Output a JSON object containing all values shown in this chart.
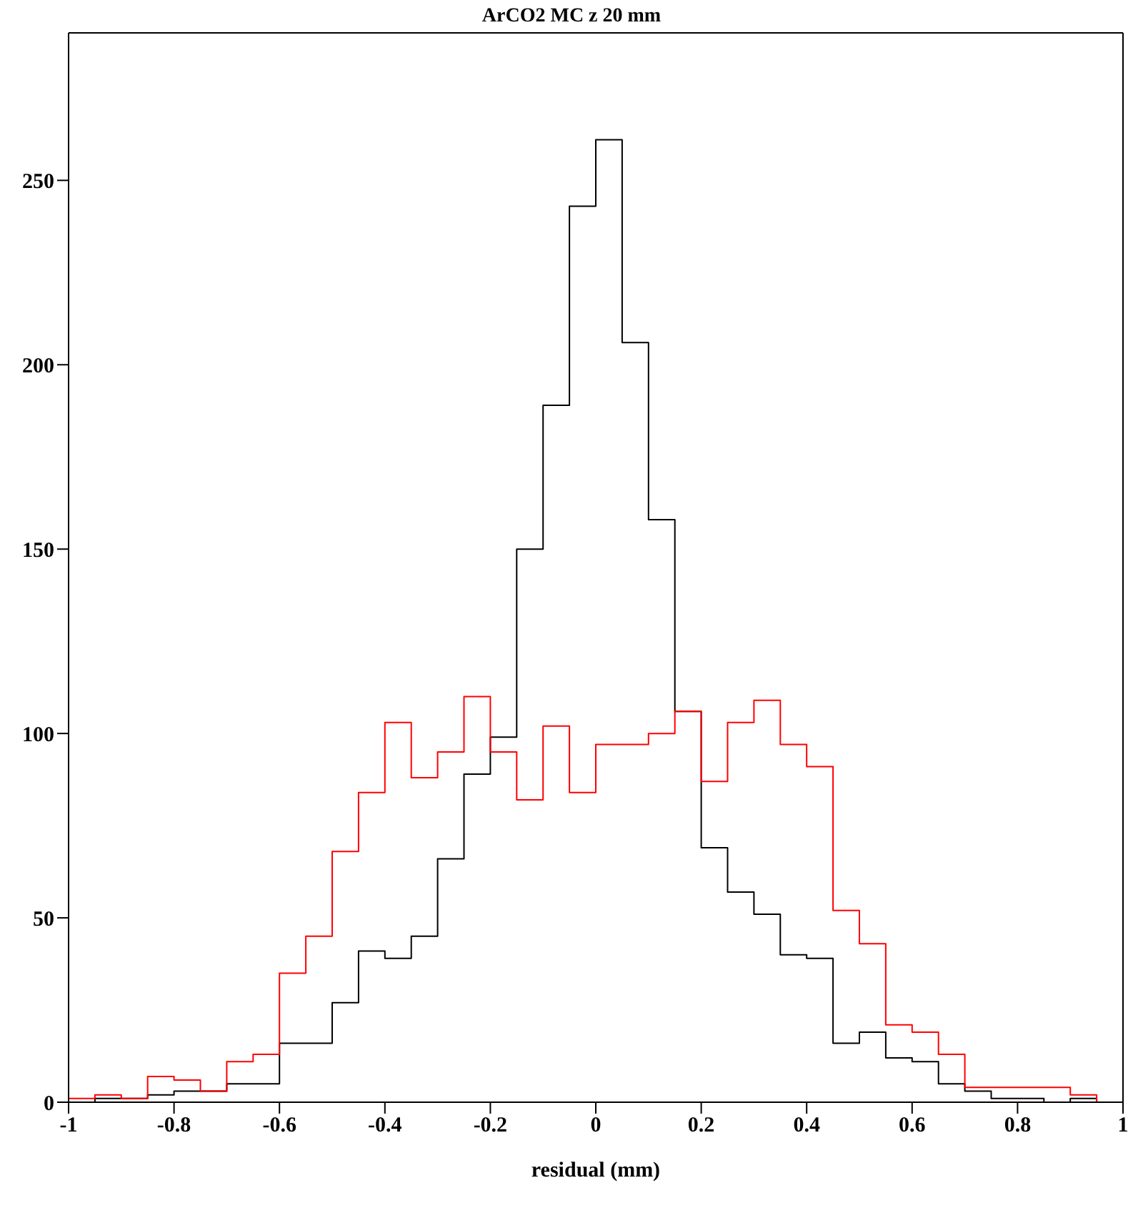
{
  "chart_data": {
    "type": "histogram",
    "title": "ArCO2 MC z  20 mm",
    "xlabel": "residual (mm)",
    "bins": [
      -1,
      -0.95,
      -0.9,
      -0.85,
      -0.8,
      -0.75,
      -0.7,
      -0.65,
      -0.6,
      -0.55,
      -0.5,
      -0.45,
      -0.4,
      -0.35,
      -0.3,
      -0.25,
      -0.2,
      -0.15,
      -0.1,
      -0.05,
      0,
      0.05,
      0.1,
      0.15,
      0.2,
      0.25,
      0.3,
      0.35,
      0.4,
      0.45,
      0.5,
      0.55,
      0.6,
      0.65,
      0.7,
      0.75,
      0.8,
      0.85,
      0.9,
      0.95,
      1
    ],
    "series": [
      {
        "color": "#000000",
        "values": [
          0,
          1,
          1,
          2,
          3,
          3,
          5,
          5,
          16,
          16,
          27,
          41,
          39,
          45,
          66,
          89,
          99,
          150,
          189,
          243,
          261,
          206,
          158,
          106,
          69,
          57,
          51,
          40,
          39,
          16,
          19,
          12,
          11,
          5,
          3,
          1,
          1,
          0,
          1,
          0
        ]
      },
      {
        "color": "#ff0000",
        "values": [
          1,
          2,
          1,
          7,
          6,
          3,
          11,
          13,
          35,
          45,
          68,
          84,
          103,
          88,
          95,
          110,
          95,
          82,
          102,
          84,
          97,
          97,
          100,
          106,
          87,
          103,
          109,
          97,
          91,
          52,
          43,
          21,
          19,
          13,
          4,
          4,
          4,
          4,
          2,
          0
        ]
      }
    ],
    "xlim": [
      -1,
      1
    ],
    "xticks": [
      -1,
      -0.8,
      -0.6,
      -0.4,
      -0.2,
      0,
      0.2,
      0.4,
      0.6,
      0.8,
      1
    ],
    "ylim": [
      0,
      290
    ],
    "yticks": [
      0,
      50,
      100,
      150,
      200,
      250
    ],
    "grid": false
  }
}
